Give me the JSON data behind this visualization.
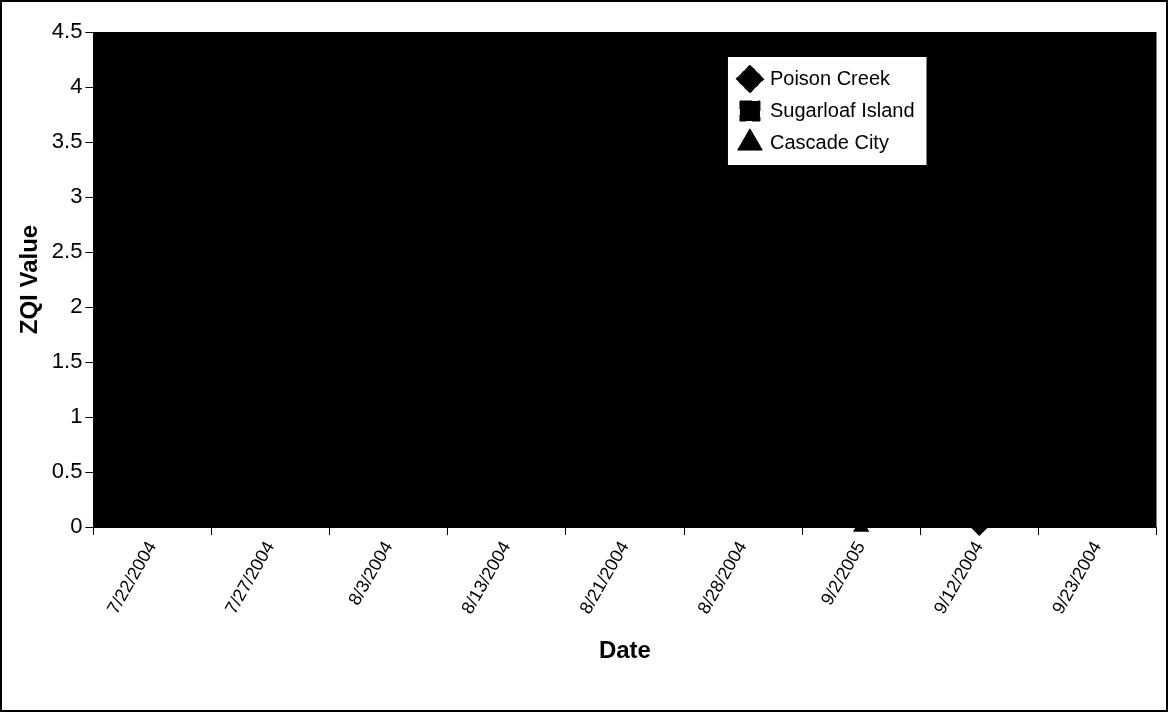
{
  "chart_data": {
    "type": "line",
    "xlabel": "Date",
    "ylabel": "ZQI Value",
    "categories": [
      "7/22/2004",
      "7/27/2004",
      "8/3/2004",
      "8/13/2004",
      "8/21/2004",
      "8/28/2004",
      "9/2/2005",
      "9/12/2004",
      "9/23/2004"
    ],
    "series": [
      {
        "name": "Poison Creek",
        "color": "#000000",
        "marker": "diamond",
        "line_style": "dotted",
        "values": [
          null,
          null,
          null,
          null,
          null,
          null,
          null,
          0,
          null
        ]
      },
      {
        "name": "Sugarloaf Island",
        "color": "#000000",
        "marker": "square",
        "line_style": "dashed",
        "values": [
          null,
          null,
          null,
          null,
          null,
          null,
          null,
          null,
          null
        ]
      },
      {
        "name": "Cascade City",
        "color": "#000000",
        "marker": "triangle",
        "line_style": "solid",
        "values": [
          null,
          null,
          null,
          null,
          null,
          null,
          0,
          null,
          null
        ]
      }
    ],
    "ylim": [
      0,
      4.5
    ],
    "yticks": [
      0,
      0.5,
      1,
      1.5,
      2,
      2.5,
      3,
      3.5,
      4,
      4.5
    ],
    "grid": false,
    "legend": "top right"
  }
}
